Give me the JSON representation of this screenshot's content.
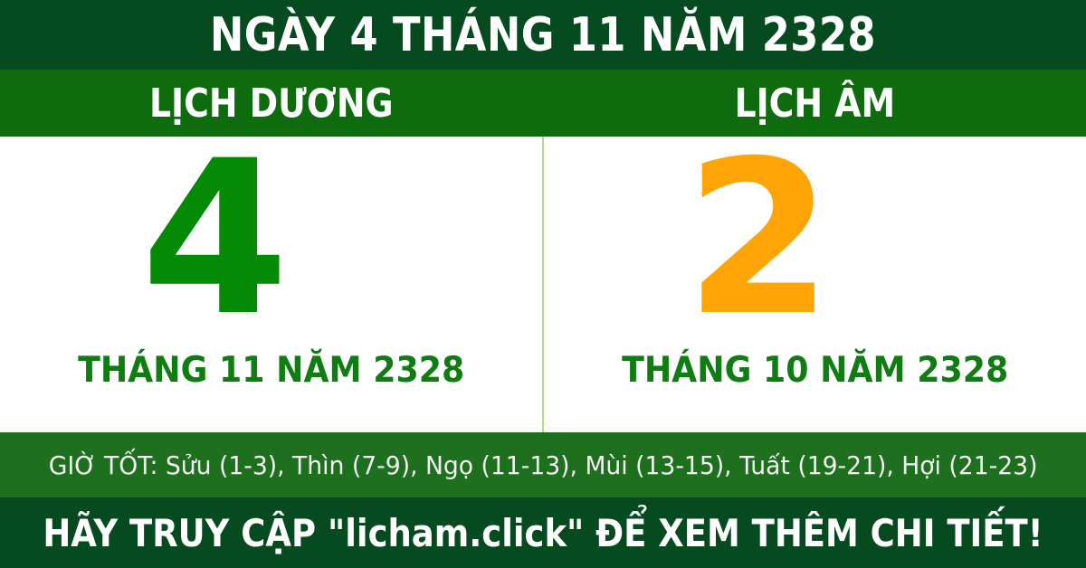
{
  "banner": {
    "title": "NGÀY 4 THÁNG 11 NĂM 2328"
  },
  "solar": {
    "header": "LỊCH DƯƠNG",
    "day": "4",
    "month_year": "THÁNG 11 NĂM 2328"
  },
  "lunar": {
    "header": "LỊCH ÂM",
    "day": "2",
    "month_year": "THÁNG 10 NĂM 2328"
  },
  "good_hours": {
    "text": "GIỜ TỐT: Sửu (1-3), Thìn (7-9), Ngọ (11-13), Mùi (13-15), Tuất (19-21), Hợi (21-23)"
  },
  "footer": {
    "message": "HÃY TRUY CẬP \"licham.click\" ĐỂ XEM THÊM CHI TIẾT!",
    "site": "licham.click"
  },
  "colors": {
    "dark_green_banner": "#064a20",
    "header_band_green": "#0e6b0e",
    "hours_bar_green": "#1e701e",
    "solar_day_green": "#058a05",
    "lunar_day_orange": "#ffa406",
    "month_text_green": "#107d12",
    "divider_light_green": "#b5da8e",
    "panel_background": "#ffffff",
    "text_white": "#ffffff"
  }
}
